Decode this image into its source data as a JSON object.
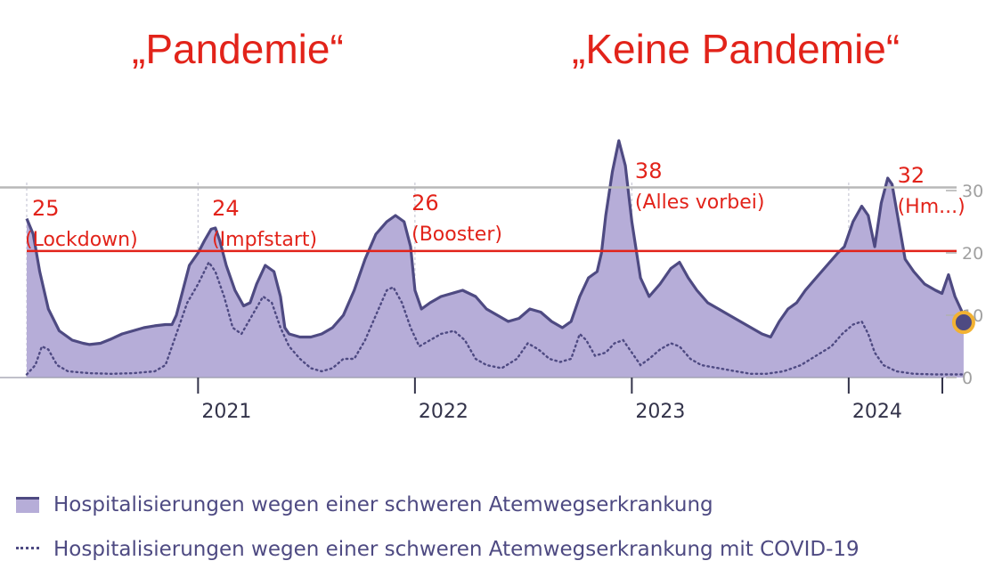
{
  "headings": {
    "left": "„Pandemie“",
    "right": "„Keine Pandemie“"
  },
  "colors": {
    "area_fill": "#b6add8",
    "line": "#4e4a82",
    "annotation": "#e2231a",
    "grid": "#b8b8b8",
    "marker_ring": "#f2b233"
  },
  "chart_data": {
    "type": "area",
    "x_ticks": [
      "2021",
      "2022",
      "2023",
      "2024"
    ],
    "y_ticks": [
      0,
      10,
      20,
      30
    ],
    "ylim": [
      0,
      38
    ],
    "series": [
      {
        "name": "Hospitalisierungen wegen einer schweren Atemwegserkrankung",
        "style": "area",
        "points": [
          [
            2020.21,
            25.5
          ],
          [
            2020.24,
            23
          ],
          [
            2020.27,
            17
          ],
          [
            2020.31,
            11
          ],
          [
            2020.36,
            7.5
          ],
          [
            2020.42,
            6
          ],
          [
            2020.47,
            5.5
          ],
          [
            2020.5,
            5.3
          ],
          [
            2020.55,
            5.5
          ],
          [
            2020.6,
            6.2
          ],
          [
            2020.65,
            7
          ],
          [
            2020.7,
            7.5
          ],
          [
            2020.75,
            8
          ],
          [
            2020.8,
            8.3
          ],
          [
            2020.85,
            8.5
          ],
          [
            2020.88,
            8.5
          ],
          [
            2020.9,
            10
          ],
          [
            2020.93,
            14
          ],
          [
            2020.96,
            18
          ],
          [
            2021.0,
            20
          ],
          [
            2021.03,
            22
          ],
          [
            2021.06,
            23.8
          ],
          [
            2021.08,
            24
          ],
          [
            2021.1,
            22
          ],
          [
            2021.13,
            18
          ],
          [
            2021.17,
            14
          ],
          [
            2021.21,
            11.5
          ],
          [
            2021.24,
            12
          ],
          [
            2021.27,
            15
          ],
          [
            2021.31,
            18
          ],
          [
            2021.35,
            17
          ],
          [
            2021.38,
            13
          ],
          [
            2021.4,
            8
          ],
          [
            2021.42,
            7
          ],
          [
            2021.47,
            6.5
          ],
          [
            2021.52,
            6.5
          ],
          [
            2021.57,
            7
          ],
          [
            2021.62,
            8
          ],
          [
            2021.67,
            10
          ],
          [
            2021.72,
            14
          ],
          [
            2021.77,
            19
          ],
          [
            2021.82,
            23
          ],
          [
            2021.87,
            25
          ],
          [
            2021.91,
            26
          ],
          [
            2021.95,
            25
          ],
          [
            2021.98,
            21
          ],
          [
            2022.0,
            14
          ],
          [
            2022.03,
            11
          ],
          [
            2022.07,
            12
          ],
          [
            2022.12,
            13
          ],
          [
            2022.17,
            13.5
          ],
          [
            2022.22,
            14
          ],
          [
            2022.28,
            13
          ],
          [
            2022.33,
            11
          ],
          [
            2022.38,
            10
          ],
          [
            2022.43,
            9
          ],
          [
            2022.48,
            9.5
          ],
          [
            2022.53,
            11
          ],
          [
            2022.58,
            10.5
          ],
          [
            2022.63,
            9
          ],
          [
            2022.68,
            8
          ],
          [
            2022.72,
            9
          ],
          [
            2022.76,
            13
          ],
          [
            2022.8,
            16
          ],
          [
            2022.84,
            17
          ],
          [
            2022.86,
            20
          ],
          [
            2022.88,
            26
          ],
          [
            2022.91,
            33
          ],
          [
            2022.94,
            38
          ],
          [
            2022.97,
            34
          ],
          [
            2023.0,
            25
          ],
          [
            2023.04,
            16
          ],
          [
            2023.08,
            13
          ],
          [
            2023.13,
            15
          ],
          [
            2023.18,
            17.5
          ],
          [
            2023.22,
            18.5
          ],
          [
            2023.26,
            16
          ],
          [
            2023.3,
            14
          ],
          [
            2023.35,
            12
          ],
          [
            2023.4,
            11
          ],
          [
            2023.45,
            10
          ],
          [
            2023.5,
            9
          ],
          [
            2023.55,
            8
          ],
          [
            2023.6,
            7
          ],
          [
            2023.64,
            6.5
          ],
          [
            2023.68,
            9
          ],
          [
            2023.72,
            11
          ],
          [
            2023.76,
            12
          ],
          [
            2023.8,
            14
          ],
          [
            2023.85,
            16
          ],
          [
            2023.9,
            18
          ],
          [
            2023.95,
            20
          ],
          [
            2023.98,
            21
          ],
          [
            2024.02,
            25
          ],
          [
            2024.06,
            27.5
          ],
          [
            2024.09,
            26
          ],
          [
            2024.12,
            21
          ],
          [
            2024.15,
            28
          ],
          [
            2024.18,
            32
          ],
          [
            2024.2,
            31
          ],
          [
            2024.23,
            25
          ],
          [
            2024.26,
            19
          ],
          [
            2024.3,
            17
          ],
          [
            2024.35,
            15
          ],
          [
            2024.4,
            14
          ],
          [
            2024.43,
            13.5
          ],
          [
            2024.46,
            16.5
          ],
          [
            2024.49,
            13
          ],
          [
            2024.53,
            10
          ]
        ]
      },
      {
        "name": "Hospitalisierungen wegen einer schweren Atemwegserkrankung mit COVID-19",
        "style": "dotted",
        "points": [
          [
            2020.21,
            0.5
          ],
          [
            2020.25,
            2
          ],
          [
            2020.28,
            5
          ],
          [
            2020.31,
            4.5
          ],
          [
            2020.35,
            2
          ],
          [
            2020.4,
            1
          ],
          [
            2020.5,
            0.7
          ],
          [
            2020.6,
            0.6
          ],
          [
            2020.7,
            0.7
          ],
          [
            2020.8,
            1
          ],
          [
            2020.85,
            2
          ],
          [
            2020.9,
            7
          ],
          [
            2020.95,
            12
          ],
          [
            2021.0,
            15
          ],
          [
            2021.05,
            18.5
          ],
          [
            2021.08,
            17
          ],
          [
            2021.12,
            13
          ],
          [
            2021.16,
            8
          ],
          [
            2021.2,
            7
          ],
          [
            2021.25,
            10
          ],
          [
            2021.3,
            13
          ],
          [
            2021.34,
            12
          ],
          [
            2021.38,
            8
          ],
          [
            2021.42,
            5
          ],
          [
            2021.47,
            3
          ],
          [
            2021.52,
            1.5
          ],
          [
            2021.57,
            1
          ],
          [
            2021.62,
            1.5
          ],
          [
            2021.67,
            3
          ],
          [
            2021.72,
            3
          ],
          [
            2021.77,
            6
          ],
          [
            2021.82,
            10
          ],
          [
            2021.87,
            14
          ],
          [
            2021.9,
            14.5
          ],
          [
            2021.94,
            12
          ],
          [
            2021.98,
            8
          ],
          [
            2022.02,
            5
          ],
          [
            2022.07,
            6
          ],
          [
            2022.12,
            7
          ],
          [
            2022.18,
            7.5
          ],
          [
            2022.23,
            6
          ],
          [
            2022.28,
            3
          ],
          [
            2022.33,
            2
          ],
          [
            2022.4,
            1.5
          ],
          [
            2022.47,
            3
          ],
          [
            2022.52,
            5.5
          ],
          [
            2022.57,
            4.5
          ],
          [
            2022.62,
            3
          ],
          [
            2022.67,
            2.5
          ],
          [
            2022.72,
            3
          ],
          [
            2022.76,
            7
          ],
          [
            2022.79,
            6
          ],
          [
            2022.83,
            3.5
          ],
          [
            2022.88,
            4
          ],
          [
            2022.92,
            5.5
          ],
          [
            2022.96,
            6
          ],
          [
            2023.0,
            4
          ],
          [
            2023.04,
            2
          ],
          [
            2023.08,
            3
          ],
          [
            2023.13,
            4.5
          ],
          [
            2023.18,
            5.5
          ],
          [
            2023.22,
            5
          ],
          [
            2023.27,
            3
          ],
          [
            2023.32,
            2
          ],
          [
            2023.4,
            1.5
          ],
          [
            2023.48,
            1
          ],
          [
            2023.55,
            0.6
          ],
          [
            2023.62,
            0.6
          ],
          [
            2023.7,
            1
          ],
          [
            2023.78,
            2
          ],
          [
            2023.85,
            3.5
          ],
          [
            2023.92,
            5
          ],
          [
            2023.97,
            7
          ],
          [
            2024.02,
            8.5
          ],
          [
            2024.06,
            9
          ],
          [
            2024.09,
            7
          ],
          [
            2024.12,
            4
          ],
          [
            2024.16,
            2
          ],
          [
            2024.22,
            1
          ],
          [
            2024.3,
            0.6
          ],
          [
            2024.4,
            0.5
          ],
          [
            2024.5,
            0.5
          ],
          [
            2024.53,
            0.5
          ]
        ]
      }
    ],
    "reference_line": {
      "y": 20.3
    },
    "upper_line": {
      "y": 30.5
    },
    "annotations": [
      {
        "value": "25",
        "note": "(Lockdown)",
        "x": 2020.21
      },
      {
        "value": "24",
        "note": "(Impfstart)",
        "x": 2021.04
      },
      {
        "value": "26",
        "note": "(Booster)",
        "x": 2021.96
      },
      {
        "value": "38",
        "note": "(Alles vorbei)",
        "x": 2022.99
      },
      {
        "value": "32",
        "note": "(Hm...)",
        "x": 2024.2
      }
    ],
    "last_point": {
      "x": 2024.53,
      "y": 10
    }
  },
  "legend": [
    {
      "label": "Hospitalisierungen wegen einer schweren Atemwegserkrankung",
      "style": "area"
    },
    {
      "label": "Hospitalisierungen wegen einer schweren Atemwegserkrankung mit COVID-19",
      "style": "dotted"
    }
  ]
}
